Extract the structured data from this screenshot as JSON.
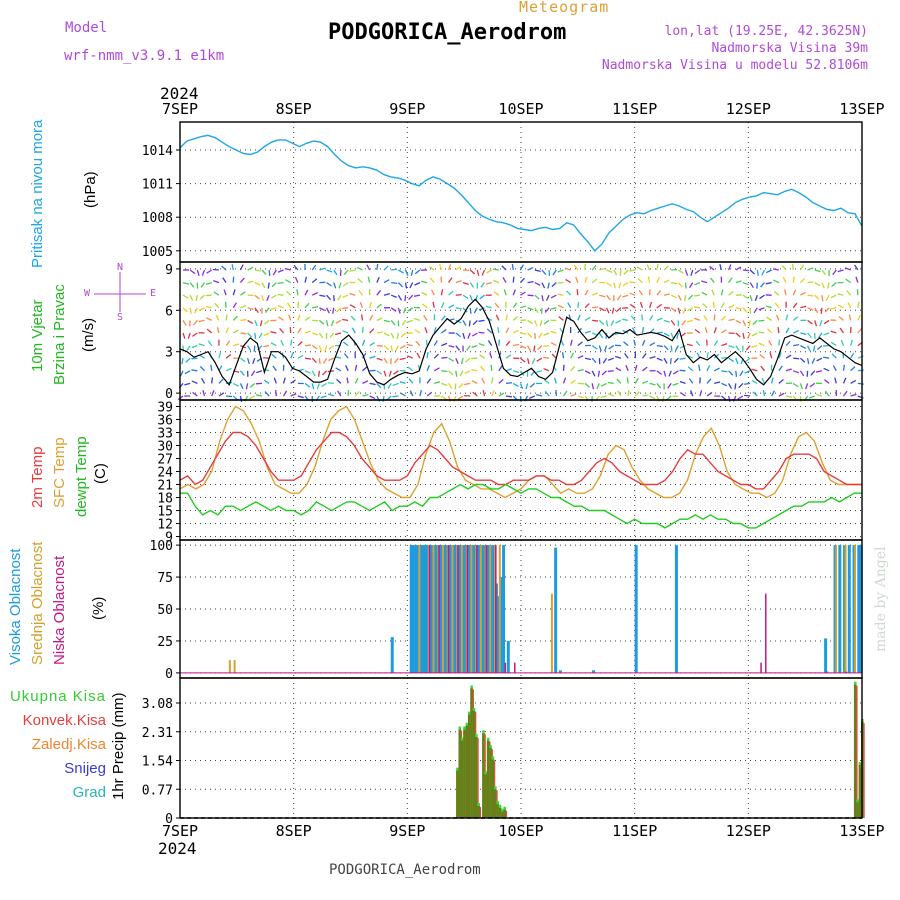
{
  "header": {
    "app_title": "Meteogram",
    "station": "PODGORICA_Aerodrom",
    "model_label": "Model",
    "model_name": "wrf-nmm_v3.9.1 e1km",
    "coords": "lon,lat (19.25E, 42.3625N)",
    "elevation": "Nadmorska Visina 39m",
    "model_elevation": "Nadmorska Visina u modelu 52.8106m",
    "year": "2024"
  },
  "footer": {
    "station": "PODGORICA_Aerodrom",
    "year": "2024",
    "credit": "made by Angel"
  },
  "colors": {
    "pressure": "#1ea7e8",
    "wind_label": "#22b822",
    "temp2m": "#e83c3c",
    "sfc": "#e0a030",
    "dewpt": "#22cc22",
    "high_cloud": "#1e9be0",
    "mid_cloud": "#d4a030",
    "low_cloud": "#c2188a",
    "total_precip": "#33dd33",
    "conv_precip": "#e83c3c",
    "frz_precip": "#f0842c",
    "snow": "#3a3ad8",
    "graupel": "#22b8b8",
    "purple": "#b04ad8"
  },
  "compass": {
    "n": "N",
    "s": "S",
    "e": "E",
    "w": "W"
  },
  "chart_data": [
    {
      "type": "line",
      "panel": "pressure",
      "ylabel": [
        "Pritisak na nivou mora",
        "(hPa)"
      ],
      "yticks": [
        1005,
        1008,
        1011,
        1014
      ],
      "ylim": [
        1004.0,
        1016.5
      ],
      "x_day_start": [
        "7SEP",
        "8SEP",
        "9SEP",
        "10SEP",
        "11SEP",
        "12SEP",
        "13SEP"
      ],
      "series": [
        {
          "values": [
            1014.2,
            1014.8,
            1015.0,
            1015.2,
            1015.3,
            1015.1,
            1014.7,
            1014.3,
            1014.0,
            1013.7,
            1013.6,
            1013.8,
            1014.3,
            1014.7,
            1014.9,
            1014.9,
            1014.6,
            1014.3,
            1014.6,
            1014.8,
            1014.7,
            1014.3,
            1013.6,
            1013.0,
            1012.6,
            1012.4,
            1012.5,
            1012.4,
            1012.2,
            1011.8,
            1011.6,
            1011.5,
            1011.3,
            1011.0,
            1010.8,
            1011.3,
            1011.6,
            1011.4,
            1011.0,
            1010.6,
            1010.0,
            1009.3,
            1008.6,
            1008.1,
            1007.8,
            1007.6,
            1007.5,
            1007.3,
            1007.0,
            1006.9,
            1006.8,
            1007.0,
            1007.1,
            1006.9,
            1007.0,
            1007.5,
            1007.3,
            1006.5,
            1005.8,
            1005.0,
            1005.6,
            1006.6,
            1007.2,
            1007.8,
            1008.2,
            1008.4,
            1008.3,
            1008.6,
            1008.8,
            1009.0,
            1009.2,
            1009.0,
            1008.7,
            1008.5,
            1008.0,
            1007.6,
            1008.0,
            1008.4,
            1008.8,
            1009.3,
            1009.6,
            1009.8,
            1009.9,
            1010.2,
            1010.1,
            1010.0,
            1010.3,
            1010.5,
            1010.2,
            1009.8,
            1009.3,
            1009.0,
            1008.7,
            1008.6,
            1008.8,
            1008.4,
            1008.3,
            1007.2
          ]
        }
      ]
    },
    {
      "type": "line",
      "panel": "wind",
      "ylabel": [
        "10m Vjetar",
        "Brzina i Pravac",
        "(m/s)"
      ],
      "yticks": [
        0,
        3,
        6,
        9
      ],
      "ylim": [
        -0.5,
        9.5
      ],
      "series": [
        {
          "name": "wind speed",
          "values": [
            3.2,
            3.0,
            2.6,
            2.8,
            3.0,
            2.2,
            1.2,
            0.6,
            2.0,
            3.4,
            4.0,
            3.6,
            1.5,
            3.0,
            3.0,
            2.6,
            1.8,
            1.6,
            1.2,
            0.8,
            0.8,
            1.0,
            2.5,
            3.8,
            4.2,
            3.6,
            2.8,
            1.4,
            0.8,
            0.6,
            1.0,
            1.3,
            1.5,
            1.4,
            1.6,
            3.2,
            4.2,
            4.8,
            5.4,
            5.0,
            5.4,
            6.3,
            6.8,
            6.2,
            5.2,
            3.5,
            1.8,
            1.3,
            1.2,
            1.5,
            1.8,
            1.2,
            1.0,
            1.5,
            3.5,
            5.5,
            5.2,
            4.4,
            3.8,
            4.0,
            4.6,
            4.0,
            4.4,
            4.3,
            4.6,
            4.2,
            4.3,
            4.4,
            4.3,
            4.1,
            3.8,
            4.6,
            2.8,
            2.2,
            2.6,
            2.4,
            2.8,
            2.2,
            2.6,
            3.0,
            2.5,
            1.8,
            1.0,
            0.6,
            1.2,
            2.5,
            4.0,
            4.2,
            4.0,
            3.8,
            3.6,
            4.0,
            3.6,
            3.2,
            3.0,
            2.6,
            2.2,
            2.0
          ]
        }
      ]
    },
    {
      "type": "line",
      "panel": "temperature",
      "ylabel": [
        "2m Temp",
        "SFC Temp",
        "dewpt Temp",
        "(C)"
      ],
      "yticks": [
        9,
        12,
        15,
        18,
        21,
        24,
        27,
        30,
        33,
        36,
        39
      ],
      "ylim": [
        8.2,
        40.5
      ],
      "series": [
        {
          "name": "2m Temp",
          "values": [
            22,
            23,
            21,
            22,
            25,
            28,
            31,
            33,
            33,
            32,
            30,
            27,
            24,
            22,
            22,
            22,
            23,
            26,
            29,
            31,
            33,
            33,
            32,
            30,
            27,
            25,
            23,
            22,
            22,
            22,
            23,
            26,
            28,
            30,
            29,
            27,
            25,
            24,
            23,
            22,
            22,
            22,
            21,
            21,
            22,
            22,
            22,
            23,
            23,
            22,
            22,
            21,
            21,
            22,
            24,
            26,
            27,
            26,
            24,
            23,
            22,
            21,
            21,
            21,
            22,
            24,
            27,
            29,
            28,
            28,
            26,
            24,
            23,
            22,
            21,
            21,
            20,
            20,
            22,
            24,
            27,
            28,
            28,
            28,
            27,
            24,
            23,
            22,
            21,
            21,
            21
          ]
        },
        {
          "name": "SFC Temp",
          "values": [
            20,
            21,
            20,
            21,
            24,
            31,
            36,
            39,
            38,
            35,
            31,
            25,
            21,
            20,
            19,
            19,
            21,
            25,
            31,
            36,
            38,
            39,
            36,
            31,
            26,
            22,
            20,
            19,
            18,
            18,
            21,
            28,
            33,
            35,
            31,
            25,
            22,
            21,
            20,
            20,
            19,
            18,
            19,
            20,
            22,
            23,
            23,
            21,
            19,
            20,
            19,
            19,
            20,
            23,
            28,
            30,
            29,
            25,
            22,
            20,
            19,
            18,
            18,
            19,
            22,
            28,
            32,
            34,
            30,
            24,
            21,
            20,
            19,
            19,
            18,
            19,
            22,
            28,
            32,
            33,
            31,
            26,
            22,
            21,
            21,
            21,
            21
          ]
        },
        {
          "name": "dewpt Temp",
          "values": [
            19,
            19,
            16,
            14,
            15,
            14,
            16,
            16,
            15,
            16,
            17,
            16,
            15,
            16,
            15,
            15,
            14,
            15,
            17,
            16,
            15,
            16,
            17,
            17,
            16,
            15,
            16,
            17,
            15,
            16,
            16,
            17,
            16,
            18,
            18,
            19,
            20,
            21,
            20,
            21,
            21,
            20,
            20,
            21,
            20,
            19,
            20,
            20,
            19,
            18,
            18,
            17,
            16,
            16,
            15,
            15,
            15,
            14,
            13,
            12,
            13,
            12,
            12,
            12,
            11,
            12,
            13,
            13,
            14,
            13,
            14,
            13,
            13,
            12,
            12,
            11,
            11,
            12,
            13,
            14,
            15,
            16,
            16,
            17,
            17,
            17,
            18,
            17,
            18,
            19,
            19
          ]
        }
      ]
    },
    {
      "type": "bar",
      "panel": "cloud",
      "ylabel": [
        "Visoka Oblacnost",
        "Srednja Oblacnost",
        "Niska Oblacnost",
        "(%)"
      ],
      "yticks": [
        0,
        25,
        50,
        75,
        100
      ],
      "ylim": [
        -4,
        104
      ],
      "series": [
        {
          "name": "Visoka Oblacnost",
          "values": [
            [
              44.5,
              28
            ],
            [
              48.5,
              100
            ],
            [
              49,
              100
            ],
            [
              49.5,
              100
            ],
            [
              50,
              100
            ],
            [
              50.5,
              100
            ],
            [
              51,
              100
            ],
            [
              51.5,
              100
            ],
            [
              52,
              100
            ],
            [
              52.5,
              100
            ],
            [
              53,
              100
            ],
            [
              53.5,
              100
            ],
            [
              54,
              100
            ],
            [
              54.5,
              100
            ],
            [
              55,
              100
            ],
            [
              55.5,
              100
            ],
            [
              56,
              100
            ],
            [
              56.5,
              100
            ],
            [
              57,
              100
            ],
            [
              57.5,
              100
            ],
            [
              58,
              100
            ],
            [
              58.5,
              100
            ],
            [
              59,
              100
            ],
            [
              59.5,
              100
            ],
            [
              60,
              100
            ],
            [
              60.5,
              100
            ],
            [
              61,
              100
            ],
            [
              61.5,
              100
            ],
            [
              62,
              100
            ],
            [
              62.5,
              100
            ],
            [
              63,
              100
            ],
            [
              63.5,
              100
            ],
            [
              64,
              100
            ],
            [
              64.5,
              100
            ],
            [
              65,
              100
            ],
            [
              65.5,
              100
            ],
            [
              66,
              100
            ],
            [
              66.5,
              70
            ],
            [
              67,
              60
            ],
            [
              67.5,
              75
            ],
            [
              68,
              100
            ],
            [
              69,
              25
            ],
            [
              79,
              98
            ],
            [
              80,
              2
            ],
            [
              87,
              2
            ],
            [
              96,
              100
            ],
            [
              104.5,
              100
            ],
            [
              136,
              27
            ],
            [
              138,
              100
            ],
            [
              139,
              100
            ],
            [
              140,
              100
            ],
            [
              141,
              100
            ],
            [
              142,
              100
            ],
            [
              143,
              100
            ],
            [
              143.5,
              100
            ]
          ]
        },
        {
          "name": "Srednja Oblacnost",
          "values": [
            [
              10,
              10
            ],
            [
              11,
              10
            ],
            [
              50,
              100
            ],
            [
              52,
              100
            ],
            [
              53,
              100
            ],
            [
              54,
              100
            ],
            [
              55,
              100
            ],
            [
              56,
              100
            ],
            [
              57,
              100
            ],
            [
              58,
              100
            ],
            [
              59,
              100
            ],
            [
              60,
              100
            ],
            [
              61,
              100
            ],
            [
              62,
              100
            ],
            [
              63,
              100
            ],
            [
              64,
              100
            ],
            [
              65,
              100
            ],
            [
              66,
              100
            ],
            [
              67,
              100
            ],
            [
              78,
              62
            ],
            [
              138,
              100
            ],
            [
              140,
              100
            ],
            [
              142,
              100
            ]
          ]
        },
        {
          "name": "Niska Oblacnost",
          "values": [
            [
              52,
              100
            ],
            [
              54,
              100
            ],
            [
              56,
              100
            ],
            [
              58,
              100
            ],
            [
              60,
              100
            ],
            [
              62,
              100
            ],
            [
              64,
              100
            ],
            [
              66,
              100
            ],
            [
              68,
              8
            ],
            [
              70,
              8
            ],
            [
              122,
              8
            ],
            [
              123,
              62
            ],
            [
              136,
              1
            ],
            [
              140,
              1
            ]
          ]
        }
      ]
    },
    {
      "type": "bar",
      "panel": "precip",
      "ylabel": [
        "Ukupna Kisa",
        "Konvek.Kisa",
        "Zaledj.Kisa",
        "Snijeg",
        "Grad",
        "1hr Precip (mm)"
      ],
      "yticks": [
        0,
        0.77,
        1.54,
        2.31,
        3.08
      ],
      "ylim": [
        0,
        3.75
      ],
      "series": [
        {
          "name": "Ukupna Kisa",
          "values": [
            [
              58.3,
              1.35
            ],
            [
              58.8,
              2.45
            ],
            [
              59.3,
              2.15
            ],
            [
              59.8,
              2.45
            ],
            [
              60.3,
              2.55
            ],
            [
              60.8,
              2.85
            ],
            [
              61.3,
              3.55
            ],
            [
              61.8,
              2.95
            ],
            [
              62.3,
              2.25
            ],
            [
              62.8,
              0.4
            ],
            [
              63.8,
              2.35
            ],
            [
              64.3,
              1.25
            ],
            [
              64.8,
              2.15
            ],
            [
              65.3,
              1.95
            ],
            [
              65.8,
              1.65
            ],
            [
              66.3,
              0.85
            ],
            [
              66.8,
              0.45
            ],
            [
              67.3,
              0.35
            ],
            [
              67.8,
              0.25
            ],
            [
              68.3,
              0.3
            ],
            [
              142.3,
              3.65
            ],
            [
              142.8,
              0.5
            ],
            [
              143.3,
              1.5
            ],
            [
              143.8,
              2.65
            ]
          ]
        }
      ]
    }
  ]
}
